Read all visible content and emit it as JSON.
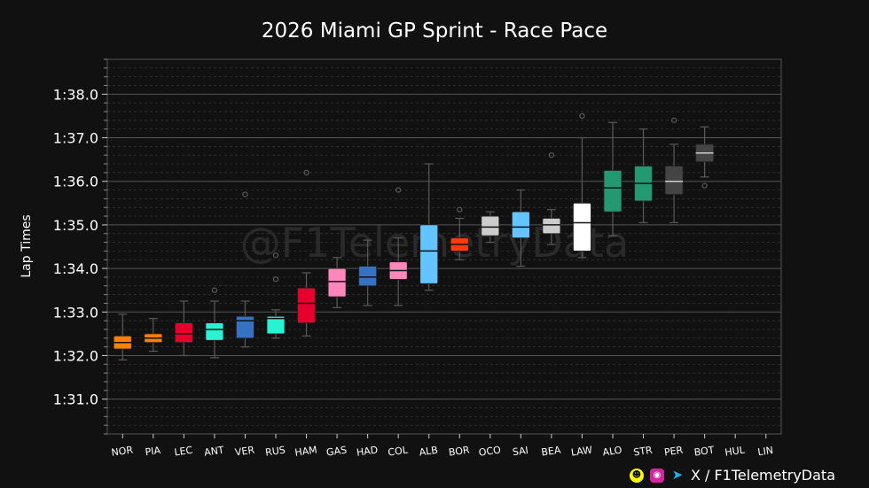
{
  "title": "2026 Miami GP Sprint - Race Pace",
  "watermark": "@F1TelemetryData",
  "footer": {
    "handle": "X / F1TelemetryData",
    "icons": [
      "snapchat-icon",
      "instagram-icon",
      "telegram-icon"
    ]
  },
  "chart_data": {
    "type": "box",
    "title": "2026 Miami GP Sprint - Race Pace",
    "xlabel": "",
    "ylabel": "Lap Times",
    "ylim": [
      90.2,
      98.8
    ],
    "yticks": [
      91,
      92,
      93,
      94,
      95,
      96,
      97,
      98
    ],
    "ytick_labels": [
      "1:31.0",
      "1:32.0",
      "1:33.0",
      "1:34.0",
      "1:35.0",
      "1:36.0",
      "1:37.0",
      "1:38.0"
    ],
    "grid": true,
    "categories": [
      "NOR",
      "PIA",
      "LEC",
      "ANT",
      "VER",
      "RUS",
      "HAM",
      "GAS",
      "HAD",
      "COL",
      "ALB",
      "BOR",
      "OCO",
      "SAI",
      "BEA",
      "LAW",
      "ALO",
      "STR",
      "PER",
      "BOT",
      "HUL",
      "LIN"
    ],
    "colors": [
      "#FF8000",
      "#FF8000",
      "#E8002D",
      "#27F4D2",
      "#3671C6",
      "#27F4D2",
      "#E8002D",
      "#FF87BC",
      "#3671C6",
      "#FF87BC",
      "#64C4FF",
      "#FF3A0F",
      "#CCCCCC",
      "#64C4FF",
      "#CCCCCC",
      "#FFFFFF",
      "#229971",
      "#229971",
      "#444444",
      "#444444",
      "#DEDEDE",
      "#DEDEDE"
    ],
    "boxes": [
      {
        "driver": "NOR",
        "min": 91.9,
        "q1": 92.15,
        "median": 92.3,
        "q3": 92.45,
        "max": 92.95,
        "outliers": []
      },
      {
        "driver": "PIA",
        "min": 92.1,
        "q1": 92.3,
        "median": 92.4,
        "q3": 92.5,
        "max": 92.85,
        "outliers": []
      },
      {
        "driver": "LEC",
        "min": 92.0,
        "q1": 92.3,
        "median": 92.5,
        "q3": 92.75,
        "max": 93.25,
        "outliers": []
      },
      {
        "driver": "ANT",
        "min": 91.95,
        "q1": 92.35,
        "median": 92.6,
        "q3": 92.75,
        "max": 93.25,
        "outliers": [
          93.5
        ]
      },
      {
        "driver": "VER",
        "min": 92.2,
        "q1": 92.4,
        "median": 92.8,
        "q3": 92.9,
        "max": 93.25,
        "outliers": [
          95.7
        ]
      },
      {
        "driver": "RUS",
        "min": 92.4,
        "q1": 92.5,
        "median": 92.85,
        "q3": 92.9,
        "max": 93.05,
        "outliers": [
          93.75,
          94.3
        ]
      },
      {
        "driver": "HAM",
        "min": 92.45,
        "q1": 92.75,
        "median": 93.2,
        "q3": 93.55,
        "max": 93.9,
        "outliers": [
          96.2
        ]
      },
      {
        "driver": "GAS",
        "min": 93.1,
        "q1": 93.35,
        "median": 93.7,
        "q3": 94.0,
        "max": 94.25,
        "outliers": []
      },
      {
        "driver": "HAD",
        "min": 93.15,
        "q1": 93.6,
        "median": 93.8,
        "q3": 94.05,
        "max": 94.65,
        "outliers": []
      },
      {
        "driver": "COL",
        "min": 93.15,
        "q1": 93.75,
        "median": 93.95,
        "q3": 94.15,
        "max": 94.7,
        "outliers": [
          95.8
        ]
      },
      {
        "driver": "ALB",
        "min": 93.5,
        "q1": 93.65,
        "median": 94.4,
        "q3": 95.0,
        "max": 96.4,
        "outliers": []
      },
      {
        "driver": "BOR",
        "min": 94.2,
        "q1": 94.4,
        "median": 94.55,
        "q3": 94.7,
        "max": 95.15,
        "outliers": [
          95.35
        ]
      },
      {
        "driver": "OCO",
        "min": 94.6,
        "q1": 94.75,
        "median": 94.95,
        "q3": 95.2,
        "max": 95.3,
        "outliers": []
      },
      {
        "driver": "SAI",
        "min": 94.05,
        "q1": 94.7,
        "median": 94.95,
        "q3": 95.3,
        "max": 95.8,
        "outliers": []
      },
      {
        "driver": "BEA",
        "min": 94.55,
        "q1": 94.8,
        "median": 95.0,
        "q3": 95.15,
        "max": 95.35,
        "outliers": [
          96.6
        ]
      },
      {
        "driver": "LAW",
        "min": 94.25,
        "q1": 94.4,
        "median": 95.05,
        "q3": 95.5,
        "max": 97.0,
        "outliers": [
          97.5
        ]
      },
      {
        "driver": "ALO",
        "min": 94.75,
        "q1": 95.3,
        "median": 95.85,
        "q3": 96.25,
        "max": 97.35,
        "outliers": []
      },
      {
        "driver": "STR",
        "min": 95.05,
        "q1": 95.55,
        "median": 95.95,
        "q3": 96.35,
        "max": 97.2,
        "outliers": []
      },
      {
        "driver": "PER",
        "min": 95.05,
        "q1": 95.7,
        "median": 96.0,
        "q3": 96.35,
        "max": 96.85,
        "outliers": [
          97.4
        ]
      },
      {
        "driver": "BOT",
        "min": 96.1,
        "q1": 96.45,
        "median": 96.65,
        "q3": 96.85,
        "max": 97.25,
        "outliers": [
          95.9
        ]
      },
      {
        "driver": "HUL",
        "min": null,
        "q1": null,
        "median": null,
        "q3": null,
        "max": null,
        "outliers": []
      },
      {
        "driver": "LIN",
        "min": null,
        "q1": null,
        "median": null,
        "q3": null,
        "max": null,
        "outliers": []
      }
    ]
  }
}
